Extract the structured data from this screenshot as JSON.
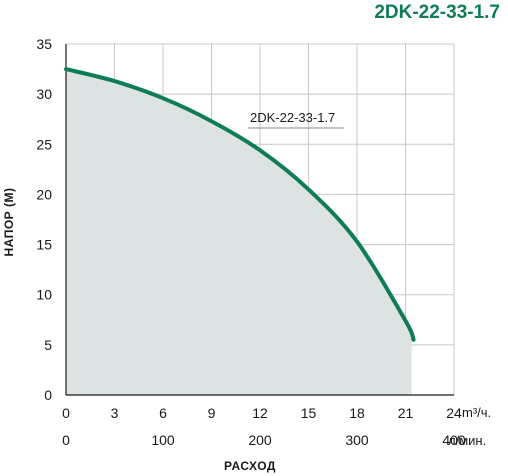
{
  "chart_data": {
    "type": "area",
    "title": "2DK-22-33-1.7",
    "ylabel": "НАПОР (М)",
    "xlabel": "РАСХОД",
    "ylim": [
      0,
      35
    ],
    "y_ticks": [
      0,
      5,
      10,
      15,
      20,
      25,
      30,
      35
    ],
    "xlim_m3h": [
      0,
      24
    ],
    "x_ticks_m3h": [
      0,
      3,
      6,
      9,
      12,
      15,
      18,
      21,
      24
    ],
    "x_unit_m3h": "m³/ч.",
    "xlim_lmin": [
      0,
      400
    ],
    "x_ticks_lmin": [
      0,
      100,
      200,
      300,
      400
    ],
    "x_unit_lmin": "л/мин.",
    "grid": true,
    "series": [
      {
        "name": "2DK-22-33-1.7",
        "x_unit": "m³/ч.",
        "x": [
          0,
          3,
          6,
          9,
          12,
          15,
          18,
          21,
          21.5
        ],
        "y": [
          32.5,
          31.3,
          29.6,
          27.3,
          24.4,
          20.5,
          15.3,
          7.4,
          5.5
        ]
      }
    ],
    "annotation": "2DK-22-33-1.7"
  },
  "colors": {
    "curve": "#0e7d55",
    "fill": "#dde3e3",
    "grid": "#c8c8c8",
    "title": "#0e7d55",
    "axis": "#1a1a1a"
  }
}
